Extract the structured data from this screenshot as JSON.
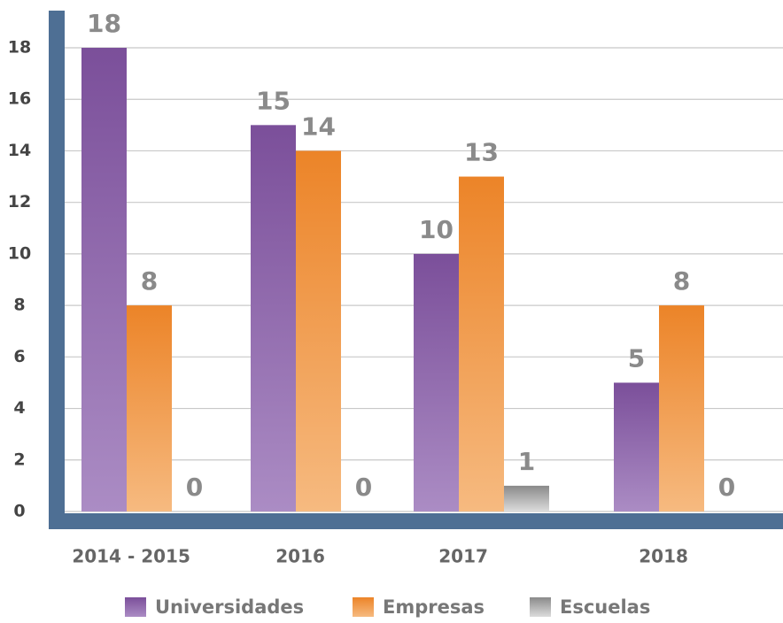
{
  "chart_data": {
    "type": "bar",
    "categories": [
      "2014 - 2015",
      "2016",
      "2017",
      "2018"
    ],
    "series": [
      {
        "name": "Universidades",
        "color": "#7b4f9a",
        "values": [
          18,
          15,
          10,
          5
        ]
      },
      {
        "name": "Empresas",
        "color": "#ec8428",
        "values": [
          8,
          14,
          13,
          8
        ]
      },
      {
        "name": "Escuelas",
        "color": "#9a9a9a",
        "values": [
          0,
          0,
          1,
          0
        ]
      }
    ],
    "ylim": [
      0,
      18
    ],
    "yticks": [
      0,
      2,
      4,
      6,
      8,
      10,
      12,
      14,
      16,
      18
    ],
    "grid": true,
    "legend": "bottom"
  }
}
